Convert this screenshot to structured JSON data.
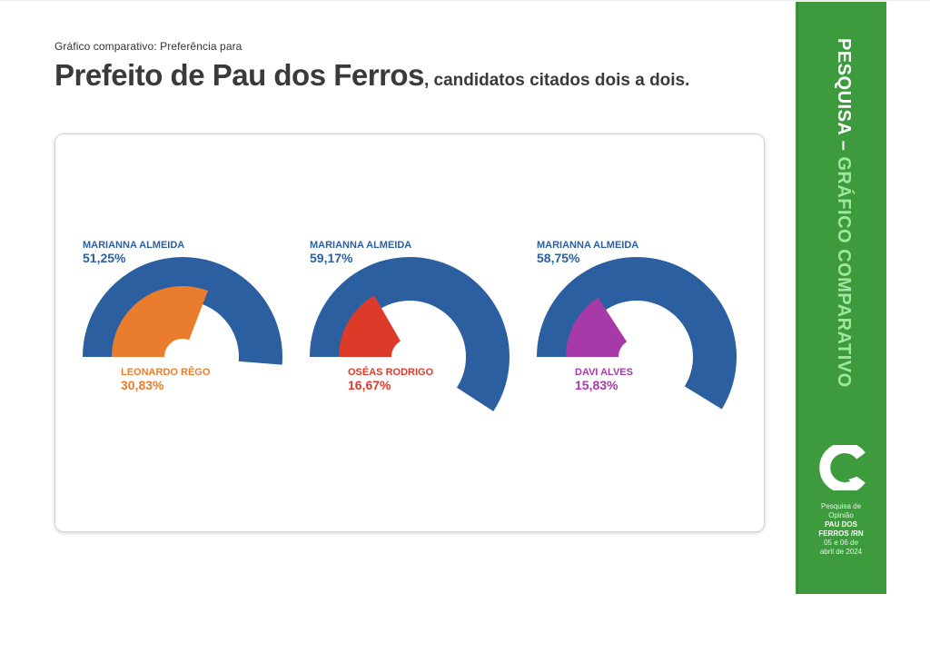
{
  "header": {
    "subtitle": "Gráfico comparativo: Preferência para",
    "title_main": "Prefeito de Pau dos Ferros",
    "title_rest": ", candidatos citados dois a dois."
  },
  "sidebar": {
    "vertical_part1": "PESQUISA – ",
    "vertical_part2": "GRÁFICO COMPARATIVO",
    "logo_icon": "speech-bubble-c-logo",
    "line1": "Pesquisa de",
    "line2": "Opinião",
    "line3": "PAU DOS",
    "line4": "FERROS /RN",
    "line5": "05 e 06 de",
    "line6": "abril de 2024"
  },
  "colors": {
    "primary": "#2b5fa0",
    "orange": "#ea7c2e",
    "red": "#de3a2a",
    "purple": "#a53aa8",
    "green": "#3d9b3d",
    "title": "#3a3a3a"
  },
  "chart_data": [
    {
      "type": "pie",
      "series": [
        {
          "name": "MARIANNA ALMEIDA",
          "value": 51.25,
          "label": "51,25%",
          "color": "#2b5fa0"
        },
        {
          "name": "LEONARDO RÊGO",
          "value": 30.83,
          "label": "30,83%",
          "color": "#ea7c2e"
        }
      ]
    },
    {
      "type": "pie",
      "series": [
        {
          "name": "MARIANNA ALMEIDA",
          "value": 59.17,
          "label": "59,17%",
          "color": "#2b5fa0"
        },
        {
          "name": "OSÉAS RODRIGO",
          "value": 16.67,
          "label": "16,67%",
          "color": "#de3a2a"
        }
      ]
    },
    {
      "type": "pie",
      "series": [
        {
          "name": "MARIANNA ALMEIDA",
          "value": 58.75,
          "label": "58,75%",
          "color": "#2b5fa0"
        },
        {
          "name": "DAVI ALVES",
          "value": 15.83,
          "label": "15,83%",
          "color": "#a53aa8"
        }
      ]
    }
  ]
}
